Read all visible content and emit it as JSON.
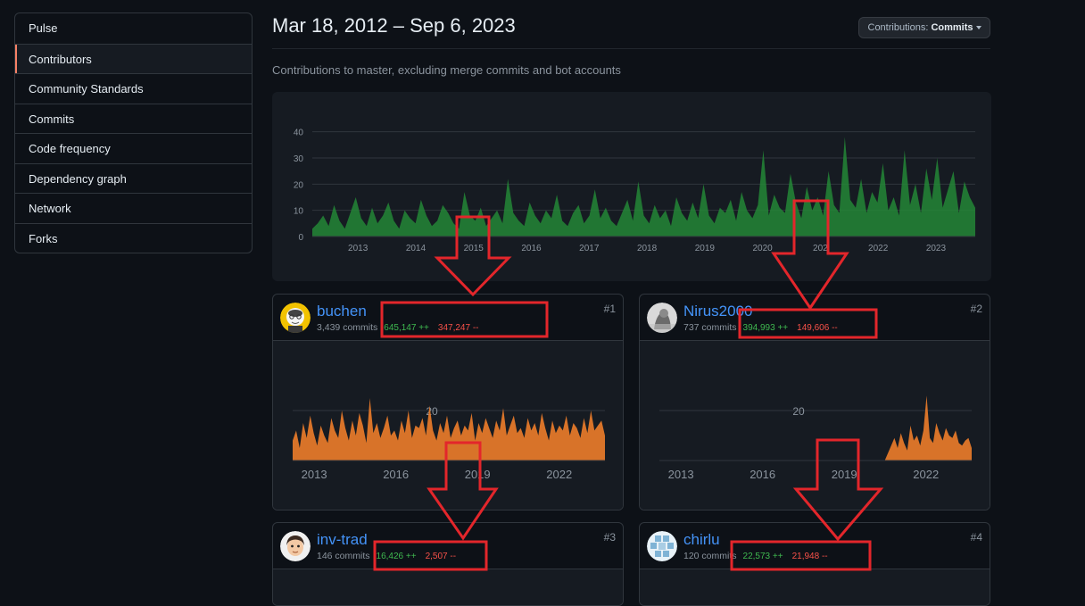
{
  "sidebar": {
    "items": [
      {
        "label": "Pulse",
        "active": false
      },
      {
        "label": "Contributors",
        "active": true
      },
      {
        "label": "Community Standards",
        "active": false
      },
      {
        "label": "Commits",
        "active": false
      },
      {
        "label": "Code frequency",
        "active": false
      },
      {
        "label": "Dependency graph",
        "active": false
      },
      {
        "label": "Network",
        "active": false
      },
      {
        "label": "Forks",
        "active": false
      }
    ]
  },
  "header": {
    "date_range": "Mar 18, 2012 – Sep 6, 2023",
    "dropdown_prefix": "Contributions: ",
    "dropdown_value": "Commits",
    "subtitle": "Contributions to master, excluding merge commits and bot accounts"
  },
  "colors": {
    "main_area": "#238636",
    "user_area": "#e3782a",
    "annotation": "#e3262b",
    "link": "#4493f8"
  },
  "chart_data": [
    {
      "type": "area",
      "yticks": [
        0,
        10,
        20,
        30,
        40
      ],
      "ylim": [
        0,
        45
      ],
      "xticks": [
        "2013",
        "2014",
        "2015",
        "2016",
        "2017",
        "2018",
        "2019",
        "2020",
        "2021",
        "2022",
        "2023"
      ],
      "xlabel_visible": [
        "2013",
        "2014",
        "2015",
        "2016",
        "2017",
        "2018",
        "2019",
        "2020",
        "202",
        "2022",
        "2023"
      ],
      "x_range_years": [
        2012.21,
        2023.68
      ],
      "series": [
        {
          "values": [
            3,
            5,
            8,
            4,
            12,
            6,
            3,
            9,
            15,
            7,
            4,
            11,
            5,
            8,
            13,
            6,
            3,
            10,
            7,
            5,
            14,
            8,
            4,
            6,
            12,
            9,
            5,
            3,
            17,
            8,
            6,
            11,
            4,
            7,
            10,
            5,
            22,
            9,
            6,
            4,
            13,
            8,
            5,
            10,
            7,
            16,
            6,
            4,
            9,
            12,
            5,
            8,
            18,
            7,
            11,
            6,
            4,
            9,
            14,
            6,
            21,
            8,
            5,
            12,
            7,
            10,
            4,
            15,
            9,
            6,
            13,
            7,
            20,
            8,
            5,
            11,
            9,
            14,
            6,
            17,
            10,
            7,
            12,
            33,
            8,
            16,
            11,
            9,
            24,
            13,
            7,
            19,
            10,
            15,
            8,
            25,
            12,
            9,
            38,
            14,
            11,
            22,
            9,
            17,
            13,
            28,
            10,
            15,
            8,
            33,
            12,
            20,
            9,
            26,
            14,
            30,
            11,
            18,
            25,
            9,
            21,
            15,
            11
          ]
        }
      ]
    },
    {
      "type": "area",
      "yticks": [
        20
      ],
      "xticks": [
        "2013",
        "2016",
        "2019",
        "2022"
      ],
      "x_range_years": [
        2012.21,
        2023.68
      ],
      "series": [
        {
          "values": [
            8,
            12,
            5,
            15,
            9,
            18,
            11,
            6,
            14,
            10,
            7,
            17,
            12,
            9,
            20,
            13,
            8,
            16,
            10,
            19,
            14,
            7,
            25,
            11,
            15,
            9,
            13,
            18,
            10,
            12,
            8,
            16,
            11,
            20,
            9,
            14,
            13,
            17,
            10,
            22,
            12,
            8,
            15,
            11,
            18,
            9,
            13,
            16,
            10,
            14,
            12,
            19,
            8,
            15,
            11,
            17,
            13,
            9,
            16,
            12,
            21,
            10,
            14,
            18,
            11,
            13,
            9,
            17,
            12,
            15,
            10,
            19,
            13,
            8,
            16,
            11,
            14,
            12,
            18,
            10,
            15,
            13,
            9,
            17,
            11,
            20,
            12,
            14,
            16,
            10
          ]
        }
      ]
    },
    {
      "type": "area",
      "yticks": [
        20
      ],
      "xticks": [
        "2013",
        "2016",
        "2019",
        "2022"
      ],
      "x_range_years": [
        2012.21,
        2023.68
      ],
      "series": [
        {
          "values": [
            0,
            0,
            0,
            0,
            0,
            0,
            0,
            0,
            0,
            0,
            0,
            0,
            0,
            0,
            0,
            0,
            0,
            0,
            0,
            0,
            0,
            0,
            0,
            0,
            0,
            0,
            0,
            0,
            0,
            0,
            0,
            0,
            0,
            0,
            0,
            0,
            0,
            0,
            0,
            0,
            0,
            0,
            0,
            0,
            0,
            0,
            0,
            0,
            0,
            0,
            0,
            0,
            0,
            0,
            0,
            0,
            0,
            0,
            0,
            0,
            0,
            0,
            0,
            0,
            0,
            0,
            0,
            0,
            0,
            0,
            0,
            3,
            6,
            9,
            5,
            11,
            7,
            4,
            14,
            8,
            10,
            6,
            12,
            26,
            9,
            7,
            15,
            11,
            8,
            13,
            10,
            9,
            12,
            7,
            6,
            8,
            9,
            5
          ]
        }
      ]
    }
  ],
  "cards": [
    {
      "name": "buchen",
      "commits": "3,439 commits",
      "additions": "645,147 ++",
      "deletions": "347,247 --",
      "rank": "#1"
    },
    {
      "name": "Nirus2000",
      "commits": "737 commits",
      "additions": "394,993 ++",
      "deletions": "149,606 --",
      "rank": "#2"
    },
    {
      "name": "inv-trad",
      "commits": "146 commits",
      "additions": "16,426 ++",
      "deletions": "2,507 --",
      "rank": "#3"
    },
    {
      "name": "chirlu",
      "commits": "120 commits",
      "additions": "22,573 ++",
      "deletions": "21,948 --",
      "rank": "#4"
    }
  ]
}
